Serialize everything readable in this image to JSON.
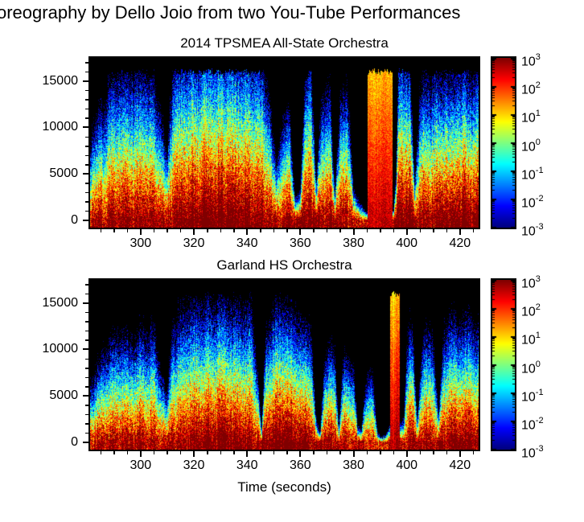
{
  "figure": {
    "title": "oreography by Dello Joio from two You-Tube Performances",
    "xlabel": "Time (seconds)"
  },
  "colors": {
    "background": "#ffffff",
    "axis": "#000000",
    "above_data": "#000000",
    "colormap": "jet",
    "colormap_low": "#00007f",
    "colormap_high": "#7f0000"
  },
  "chart_data": {
    "type": "heatmap",
    "subtype": "spectrogram",
    "xlabel": "Time (seconds)",
    "ylabel": "",
    "x": {
      "range": [
        281,
        427
      ],
      "major_ticks": [
        300,
        320,
        340,
        360,
        380,
        400,
        420
      ],
      "minor_tick_step": 5
    },
    "y": {
      "range": [
        -800,
        17500
      ],
      "data_max_hz": 16000,
      "major_ticks": [
        0,
        5000,
        10000,
        15000
      ],
      "minor_tick_step": 1000
    },
    "colorbar": {
      "scale": "log10",
      "exponent_range": [
        -3,
        3
      ],
      "tick_labels": [
        "10^3",
        "10^2",
        "10^1",
        "10^0",
        "10^-1",
        "10^-2",
        "10^-3"
      ]
    },
    "panels": [
      {
        "title": "2014 TPSMEA All-State Orchestra",
        "seed": 11,
        "base_level": 3.1,
        "slope": 5.8,
        "cut_profile": [
          [
            280,
            7000
          ],
          [
            283,
            9000
          ],
          [
            287,
            11500
          ],
          [
            290,
            13500
          ],
          [
            295,
            13000
          ],
          [
            300,
            14000
          ],
          [
            305,
            12500
          ],
          [
            308,
            9000
          ],
          [
            310,
            6000
          ],
          [
            312,
            14000
          ],
          [
            316,
            15200
          ],
          [
            322,
            15500
          ],
          [
            330,
            15500
          ],
          [
            338,
            15200
          ],
          [
            344,
            15500
          ],
          [
            348,
            12000
          ],
          [
            351,
            5000
          ],
          [
            353,
            9000
          ],
          [
            356,
            9500
          ],
          [
            358,
            2000
          ],
          [
            360,
            2500
          ],
          [
            362,
            13500
          ],
          [
            364,
            14000
          ],
          [
            366,
            3000
          ],
          [
            368,
            11000
          ],
          [
            371,
            12000
          ],
          [
            373,
            2500
          ],
          [
            375,
            11000
          ],
          [
            378,
            11500
          ],
          [
            380,
            3000
          ],
          [
            382,
            1800
          ],
          [
            384,
            1200
          ],
          [
            385,
            900
          ],
          [
            395,
            900
          ],
          [
            396,
            4000
          ],
          [
            397,
            14500
          ],
          [
            399,
            15000
          ],
          [
            401,
            14000
          ],
          [
            403,
            3500
          ],
          [
            405,
            12000
          ],
          [
            407,
            13000
          ],
          [
            409,
            12500
          ],
          [
            411,
            13500
          ],
          [
            413,
            12000
          ],
          [
            415,
            13500
          ],
          [
            418,
            12500
          ],
          [
            421,
            13500
          ],
          [
            424,
            12500
          ],
          [
            427,
            13000
          ]
        ],
        "level_profile": [
          [
            280,
            -0.3
          ],
          [
            290,
            0.1
          ],
          [
            300,
            0.2
          ],
          [
            310,
            0
          ],
          [
            318,
            0.4
          ],
          [
            324,
            0.8
          ],
          [
            338,
            0.7
          ],
          [
            344,
            0.3
          ],
          [
            351,
            -0.2
          ],
          [
            356,
            0.2
          ],
          [
            362,
            0.6
          ],
          [
            365,
            0.3
          ],
          [
            370,
            0.2
          ],
          [
            378,
            0.1
          ],
          [
            383,
            -0.5
          ],
          [
            396,
            0.3
          ],
          [
            399,
            0.6
          ],
          [
            402,
            0.4
          ],
          [
            406,
            0.2
          ],
          [
            412,
            0.3
          ],
          [
            416,
            0.5
          ],
          [
            422,
            0.6
          ],
          [
            427,
            0.5
          ]
        ],
        "broadband_events": [
          {
            "t0": 385.3,
            "t1": 394.7,
            "a": 2.6,
            "b": 1.5
          }
        ]
      },
      {
        "title": "Garland HS Orchestra",
        "seed": 29,
        "base_level": 3.0,
        "slope": 7.2,
        "cut_profile": [
          [
            280,
            6000
          ],
          [
            284,
            9000
          ],
          [
            288,
            11500
          ],
          [
            292,
            12500
          ],
          [
            297,
            11500
          ],
          [
            301,
            12500
          ],
          [
            305,
            13000
          ],
          [
            308,
            8000
          ],
          [
            310,
            5500
          ],
          [
            312,
            13500
          ],
          [
            316,
            14800
          ],
          [
            322,
            15300
          ],
          [
            330,
            15000
          ],
          [
            336,
            14500
          ],
          [
            342,
            15000
          ],
          [
            344,
            8000
          ],
          [
            345.5,
            1200
          ],
          [
            347,
            12000
          ],
          [
            350,
            14000
          ],
          [
            354,
            14000
          ],
          [
            358,
            13500
          ],
          [
            362,
            12500
          ],
          [
            364,
            13000
          ],
          [
            366,
            2500
          ],
          [
            367.5,
            1000
          ],
          [
            369,
            9000
          ],
          [
            371,
            11000
          ],
          [
            373,
            10500
          ],
          [
            374.5,
            1500
          ],
          [
            376,
            9500
          ],
          [
            378,
            10000
          ],
          [
            380,
            9500
          ],
          [
            381.5,
            2000
          ],
          [
            383,
            1500
          ],
          [
            385,
            8500
          ],
          [
            387,
            9000
          ],
          [
            389,
            1500
          ],
          [
            390,
            800
          ],
          [
            392,
            900
          ],
          [
            393.5,
            2000
          ],
          [
            398,
            2500
          ],
          [
            399,
            3000
          ],
          [
            400,
            12500
          ],
          [
            402,
            13000
          ],
          [
            404,
            2500
          ],
          [
            406,
            12000
          ],
          [
            408,
            12500
          ],
          [
            410,
            12000
          ],
          [
            412,
            3000
          ],
          [
            414,
            12500
          ],
          [
            416,
            13500
          ],
          [
            418,
            13000
          ],
          [
            420,
            12500
          ],
          [
            422,
            13500
          ],
          [
            424,
            13000
          ],
          [
            427,
            12800
          ]
        ],
        "level_profile": [
          [
            280,
            -0.4
          ],
          [
            290,
            0
          ],
          [
            300,
            0.1
          ],
          [
            310,
            -0.1
          ],
          [
            316,
            0.2
          ],
          [
            324,
            0.6
          ],
          [
            336,
            0.5
          ],
          [
            343,
            0.1
          ],
          [
            348,
            0.7
          ],
          [
            354,
            0.8
          ],
          [
            360,
            0.5
          ],
          [
            364,
            0.2
          ],
          [
            370,
            0
          ],
          [
            377,
            0
          ],
          [
            385,
            -0.3
          ],
          [
            391,
            -0.8
          ],
          [
            398,
            -0.5
          ],
          [
            401,
            0.2
          ],
          [
            407,
            0.1
          ],
          [
            414,
            0.3
          ],
          [
            420,
            0.4
          ],
          [
            427,
            0.3
          ]
        ],
        "broadband_events": [
          {
            "t0": 393.6,
            "t1": 397.4,
            "a": 2.8,
            "b": 1.7
          }
        ]
      }
    ]
  }
}
